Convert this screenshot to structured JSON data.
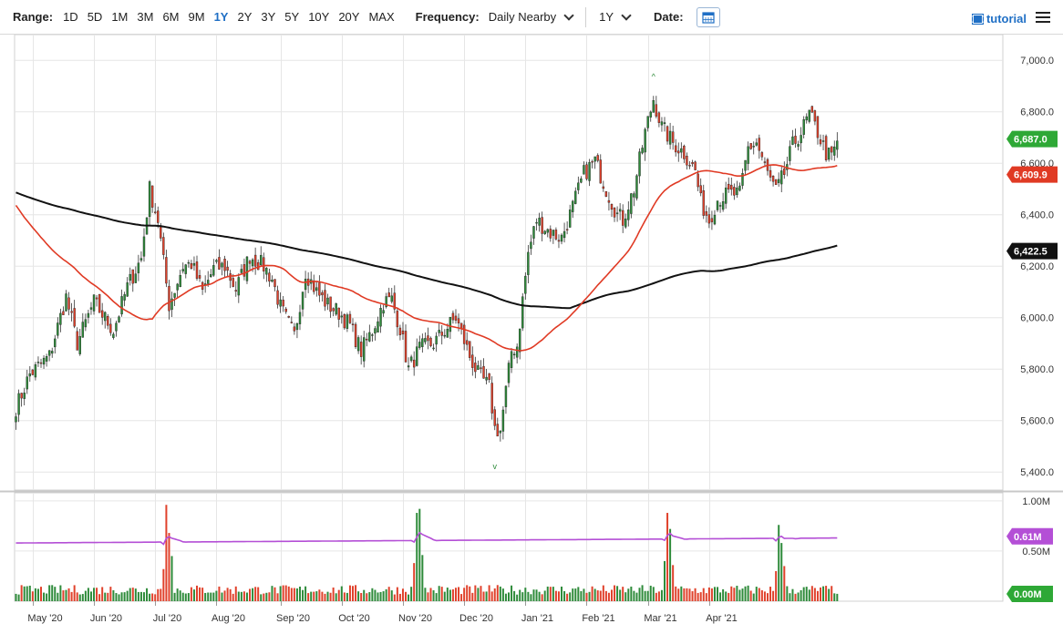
{
  "toolbar": {
    "range_label": "Range:",
    "ranges": [
      "1D",
      "5D",
      "1M",
      "3M",
      "6M",
      "9M",
      "1Y",
      "2Y",
      "3Y",
      "5Y",
      "10Y",
      "20Y",
      "MAX"
    ],
    "active_range": "1Y",
    "frequency_label": "Frequency:",
    "frequency_value": "Daily Nearby",
    "period_value": "1Y",
    "date_label": "Date:",
    "tutorial_label": "tutorial",
    "calendar_icon": "calendar-icon",
    "menu_icon": "hamburger-menu-icon"
  },
  "colors": {
    "up": "#2e8b3a",
    "down": "#e0412b",
    "ma50": "#e03a24",
    "ma200": "#111111",
    "volume_avg": "#b44fd6",
    "badge_last": "#2ea836",
    "badge_ma50": "#e03a24",
    "badge_ma200": "#111111",
    "active_range": "#1f6fc5"
  },
  "chart_data": {
    "type": "candlestick",
    "x_tick_labels": [
      "May '20",
      "Jun '20",
      "Jul '20",
      "Aug '20",
      "Sep '20",
      "Oct '20",
      "Nov '20",
      "Dec '20",
      "Jan '21",
      "Feb '21",
      "Mar '21",
      "Apr '21"
    ],
    "y_tick_labels": [
      "5,400.0",
      "5,600.0",
      "5,800.0",
      "6,000.0",
      "6,200.0",
      "6,400.0",
      "6,600.0",
      "6,800.0",
      "7,000.0"
    ],
    "y_ticks": [
      5400,
      5600,
      5800,
      6000,
      6200,
      6400,
      6600,
      6800,
      7000
    ],
    "ylim": [
      5330,
      7100
    ],
    "price_anchors": [
      [
        0,
        5650
      ],
      [
        5,
        5780
      ],
      [
        12,
        5850
      ],
      [
        18,
        6080
      ],
      [
        22,
        5900
      ],
      [
        28,
        6060
      ],
      [
        35,
        5950
      ],
      [
        40,
        6120
      ],
      [
        45,
        6230
      ],
      [
        48,
        6500
      ],
      [
        51,
        6380
      ],
      [
        55,
        6050
      ],
      [
        60,
        6200
      ],
      [
        63,
        6210
      ],
      [
        67,
        6100
      ],
      [
        71,
        6190
      ],
      [
        75,
        6200
      ],
      [
        79,
        6110
      ],
      [
        84,
        6240
      ],
      [
        89,
        6200
      ],
      [
        92,
        6150
      ],
      [
        95,
        6040
      ],
      [
        100,
        5930
      ],
      [
        104,
        6180
      ],
      [
        108,
        6100
      ],
      [
        112,
        6050
      ],
      [
        116,
        6020
      ],
      [
        120,
        5970
      ],
      [
        124,
        5870
      ],
      [
        128,
        5950
      ],
      [
        132,
        6060
      ],
      [
        135,
        6070
      ],
      [
        138,
        5960
      ],
      [
        141,
        5800
      ],
      [
        145,
        5880
      ],
      [
        150,
        5900
      ],
      [
        154,
        5950
      ],
      [
        158,
        6000
      ],
      [
        160,
        5940
      ],
      [
        163,
        5850
      ],
      [
        166,
        5780
      ],
      [
        170,
        5730
      ],
      [
        172,
        5570
      ],
      [
        174,
        5560
      ],
      [
        178,
        5870
      ],
      [
        180,
        5890
      ],
      [
        184,
        6250
      ],
      [
        187,
        6380
      ],
      [
        192,
        6330
      ],
      [
        196,
        6310
      ],
      [
        200,
        6430
      ],
      [
        204,
        6560
      ],
      [
        208,
        6610
      ],
      [
        212,
        6500
      ],
      [
        216,
        6400
      ],
      [
        218,
        6380
      ],
      [
        222,
        6500
      ],
      [
        226,
        6720
      ],
      [
        229,
        6850
      ],
      [
        232,
        6740
      ],
      [
        236,
        6680
      ],
      [
        240,
        6640
      ],
      [
        244,
        6570
      ],
      [
        246,
        6450
      ],
      [
        249,
        6380
      ],
      [
        252,
        6460
      ],
      [
        256,
        6480
      ],
      [
        260,
        6480
      ],
      [
        263,
        6660
      ],
      [
        266,
        6680
      ],
      [
        270,
        6560
      ],
      [
        273,
        6490
      ],
      [
        276,
        6560
      ],
      [
        279,
        6670
      ],
      [
        282,
        6720
      ],
      [
        285,
        6790
      ],
      [
        288,
        6720
      ],
      [
        291,
        6640
      ],
      [
        293,
        6622
      ],
      [
        295,
        6687
      ]
    ],
    "ma_window_days": [
      50,
      200
    ],
    "last_price": 6687.0,
    "badges": {
      "last": "6,687.0",
      "ma50": "6,609.9",
      "ma200": "6,422.5",
      "volume_avg": "0.61M",
      "volume_zero": "0.00M"
    },
    "annotations": {
      "swing_high": 6920,
      "swing_low": 5440
    },
    "volume": {
      "y_tick_labels": [
        "1.00M",
        "0.50M"
      ],
      "y_ticks": [
        1.0,
        0.5
      ],
      "ylim": [
        0,
        1.08
      ],
      "average": 0.61,
      "base_level": 0.12,
      "spikes": [
        [
          53,
          0.32
        ],
        [
          54,
          0.96
        ],
        [
          55,
          0.68
        ],
        [
          56,
          0.45
        ],
        [
          143,
          0.38
        ],
        [
          144,
          0.88
        ],
        [
          145,
          0.92
        ],
        [
          146,
          0.46
        ],
        [
          233,
          0.4
        ],
        [
          234,
          0.88
        ],
        [
          235,
          0.72
        ],
        [
          236,
          0.36
        ],
        [
          273,
          0.3
        ],
        [
          274,
          0.76
        ],
        [
          275,
          0.58
        ],
        [
          276,
          0.35
        ]
      ]
    }
  }
}
